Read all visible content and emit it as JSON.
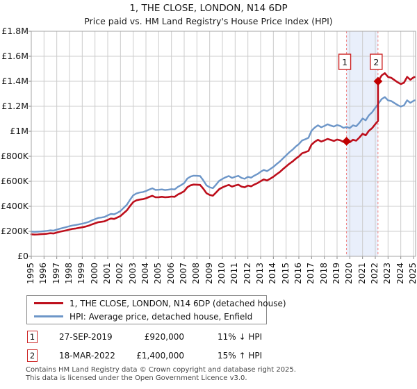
{
  "title": "1, THE CLOSE, LONDON, N14 6DP",
  "subtitle": "Price paid vs. HM Land Registry's House Price Index (HPI)",
  "colors": {
    "property_line": "#bd0f1c",
    "hpi_line": "#6d96c8",
    "event_line": "#f08080",
    "band_fill": "#e9effb",
    "grid": "#cccccc",
    "plot_border": "#a6a6a6",
    "tick": "#888888",
    "marker": "#c00000",
    "annotation_box_border": "#cc2222"
  },
  "y_axis": {
    "ticks": [
      {
        "label": "£1.8M",
        "value": 1800
      },
      {
        "label": "£1.6M",
        "value": 1600
      },
      {
        "label": "£1.4M",
        "value": 1400
      },
      {
        "label": "£1.2M",
        "value": 1200
      },
      {
        "label": "£1M",
        "value": 1000
      },
      {
        "label": "£800K",
        "value": 800
      },
      {
        "label": "£600K",
        "value": 600
      },
      {
        "label": "£400K",
        "value": 400
      },
      {
        "label": "£200K",
        "value": 200
      },
      {
        "label": "£0",
        "value": 0
      }
    ]
  },
  "x_axis": {
    "ticks": [
      "1995",
      "1996",
      "1997",
      "1998",
      "1999",
      "2000",
      "2001",
      "2002",
      "2003",
      "2004",
      "2005",
      "2006",
      "2007",
      "2008",
      "2009",
      "2010",
      "2011",
      "2012",
      "2013",
      "2014",
      "2015",
      "2016",
      "2017",
      "2018",
      "2019",
      "2020",
      "2021",
      "2022",
      "2023",
      "2024",
      "2025"
    ]
  },
  "legend": {
    "items": [
      {
        "label": "1, THE CLOSE, LONDON, N14 6DP (detached house)",
        "color_key": "property_line"
      },
      {
        "label": "HPI: Average price, detached house, Enfield",
        "color_key": "hpi_line"
      }
    ]
  },
  "transactions": [
    {
      "num": "1",
      "date": "27-SEP-2019",
      "price": "£920,000",
      "hpi_diff": "11% ↓ HPI"
    },
    {
      "num": "2",
      "date": "18-MAR-2022",
      "price": "£1,400,000",
      "hpi_diff": "15% ↑ HPI"
    }
  ],
  "footer": {
    "line1": "Contains HM Land Registry data © Crown copyright and database right 2025.",
    "line2": "This data is licensed under the Open Government Licence v3.0."
  },
  "chart_data": {
    "type": "line",
    "xlim": [
      1995,
      2025.3
    ],
    "ylim": [
      0,
      1800
    ],
    "y_unit": "GBP thousands",
    "grid": true,
    "legend_position": "below",
    "band": {
      "from": 2019.74,
      "to": 2022.21
    },
    "event_x": [
      2019.74,
      2022.21
    ],
    "markers": [
      {
        "label": "1",
        "x": 2019.74,
        "y": 920
      },
      {
        "label": "2",
        "x": 2022.21,
        "y": 1400
      }
    ],
    "series": [
      {
        "name": "1, THE CLOSE, LONDON, N14 6DP (detached house)",
        "color": "property_line",
        "width": 2.6,
        "x": [
          1995,
          1995.25,
          1995.5,
          1995.75,
          1996,
          1996.25,
          1996.5,
          1996.75,
          1997,
          1997.25,
          1997.5,
          1997.75,
          1998,
          1998.25,
          1998.5,
          1998.75,
          1999,
          1999.25,
          1999.5,
          1999.75,
          2000,
          2000.25,
          2000.5,
          2000.75,
          2001,
          2001.25,
          2001.5,
          2001.75,
          2002,
          2002.25,
          2002.5,
          2002.75,
          2003,
          2003.25,
          2003.5,
          2003.75,
          2004,
          2004.25,
          2004.5,
          2004.75,
          2005,
          2005.25,
          2005.5,
          2005.75,
          2006,
          2006.25,
          2006.5,
          2006.75,
          2007,
          2007.25,
          2007.5,
          2007.75,
          2008,
          2008.25,
          2008.5,
          2008.75,
          2009,
          2009.25,
          2009.5,
          2009.75,
          2010,
          2010.25,
          2010.5,
          2010.75,
          2011,
          2011.25,
          2011.5,
          2011.75,
          2012,
          2012.25,
          2012.5,
          2012.75,
          2013,
          2013.25,
          2013.5,
          2013.75,
          2014,
          2014.25,
          2014.5,
          2014.75,
          2015,
          2015.25,
          2015.5,
          2015.75,
          2016,
          2016.25,
          2016.5,
          2016.75,
          2017,
          2017.25,
          2017.5,
          2017.75,
          2018,
          2018.25,
          2018.5,
          2018.75,
          2019,
          2019.25,
          2019.5,
          2019.74,
          2020,
          2020.25,
          2020.5,
          2020.75,
          2021,
          2021.25,
          2021.5,
          2021.75,
          2022,
          2022.21,
          2022.21,
          2022.5,
          2022.75,
          2023,
          2023.25,
          2023.5,
          2023.75,
          2024,
          2024.25,
          2024.5,
          2024.75,
          2025,
          2025.1
        ],
        "y": [
          176,
          174,
          175,
          177,
          179,
          181,
          185,
          183,
          190,
          197,
          202,
          208,
          214,
          220,
          223,
          228,
          232,
          238,
          245,
          255,
          264,
          273,
          276,
          280,
          292,
          302,
          299,
          310,
          322,
          345,
          367,
          402,
          434,
          448,
          454,
          457,
          464,
          475,
          484,
          472,
          473,
          476,
          472,
          474,
          478,
          476,
          494,
          506,
          521,
          553,
          568,
          574,
          573,
          571,
          541,
          505,
          491,
          485,
          510,
          537,
          551,
          562,
          571,
          558,
          566,
          573,
          558,
          552,
          566,
          560,
          574,
          585,
          601,
          615,
          606,
          621,
          636,
          656,
          674,
          697,
          719,
          740,
          758,
          780,
          799,
          824,
          833,
          843,
          894,
          916,
          932,
          918,
          927,
          939,
          931,
          923,
          934,
          928,
          915,
          920,
          913,
          932,
          925,
          950,
          980,
          968,
          1004,
          1025,
          1057,
          1083,
          1400,
          1447,
          1465,
          1435,
          1428,
          1410,
          1392,
          1378,
          1389,
          1435,
          1412,
          1431,
          1434
        ]
      },
      {
        "name": "HPI: Average price, detached house, Enfield",
        "color": "hpi_line",
        "width": 2.4,
        "x": [
          1995,
          1995.25,
          1995.5,
          1995.75,
          1996,
          1996.25,
          1996.5,
          1996.75,
          1997,
          1997.25,
          1997.5,
          1997.75,
          1998,
          1998.25,
          1998.5,
          1998.75,
          1999,
          1999.25,
          1999.5,
          1999.75,
          2000,
          2000.25,
          2000.5,
          2000.75,
          2001,
          2001.25,
          2001.5,
          2001.75,
          2002,
          2002.25,
          2002.5,
          2002.75,
          2003,
          2003.25,
          2003.5,
          2003.75,
          2004,
          2004.25,
          2004.5,
          2004.75,
          2005,
          2005.25,
          2005.5,
          2005.75,
          2006,
          2006.25,
          2006.5,
          2006.75,
          2007,
          2007.25,
          2007.5,
          2007.75,
          2008,
          2008.25,
          2008.5,
          2008.75,
          2009,
          2009.25,
          2009.5,
          2009.75,
          2010,
          2010.25,
          2010.5,
          2010.75,
          2011,
          2011.25,
          2011.5,
          2011.75,
          2012,
          2012.25,
          2012.5,
          2012.75,
          2013,
          2013.25,
          2013.5,
          2013.75,
          2014,
          2014.25,
          2014.5,
          2014.75,
          2015,
          2015.25,
          2015.5,
          2015.75,
          2016,
          2016.25,
          2016.5,
          2016.75,
          2017,
          2017.25,
          2017.5,
          2017.75,
          2018,
          2018.25,
          2018.5,
          2018.75,
          2019,
          2019.25,
          2019.5,
          2019.74,
          2020,
          2020.25,
          2020.5,
          2020.75,
          2021,
          2021.25,
          2021.5,
          2021.75,
          2022,
          2022.21,
          2022.5,
          2022.75,
          2023,
          2023.25,
          2023.5,
          2023.75,
          2024,
          2024.25,
          2024.5,
          2024.75,
          2025,
          2025.1
        ],
        "y": [
          198,
          196,
          197,
          199,
          201,
          204,
          208,
          206,
          214,
          221,
          227,
          234,
          241,
          247,
          251,
          256,
          261,
          267,
          275,
          287,
          297,
          307,
          310,
          315,
          328,
          339,
          336,
          348,
          362,
          388,
          412,
          452,
          488,
          503,
          510,
          514,
          522,
          534,
          544,
          531,
          532,
          535,
          530,
          533,
          537,
          535,
          555,
          569,
          586,
          622,
          638,
          645,
          644,
          642,
          608,
          568,
          552,
          545,
          573,
          604,
          619,
          632,
          642,
          627,
          636,
          644,
          627,
          620,
          636,
          629,
          645,
          658,
          676,
          691,
          681,
          698,
          715,
          737,
          758,
          783,
          808,
          832,
          852,
          877,
          898,
          926,
          936,
          948,
          1005,
          1030,
          1048,
          1032,
          1042,
          1056,
          1046,
          1038,
          1050,
          1043,
          1028,
          1034,
          1026,
          1048,
          1040,
          1068,
          1102,
          1088,
          1128,
          1152,
          1188,
          1217,
          1258,
          1274,
          1248,
          1242,
          1226,
          1210,
          1198,
          1208,
          1248,
          1228,
          1244,
          1247
        ]
      }
    ]
  }
}
